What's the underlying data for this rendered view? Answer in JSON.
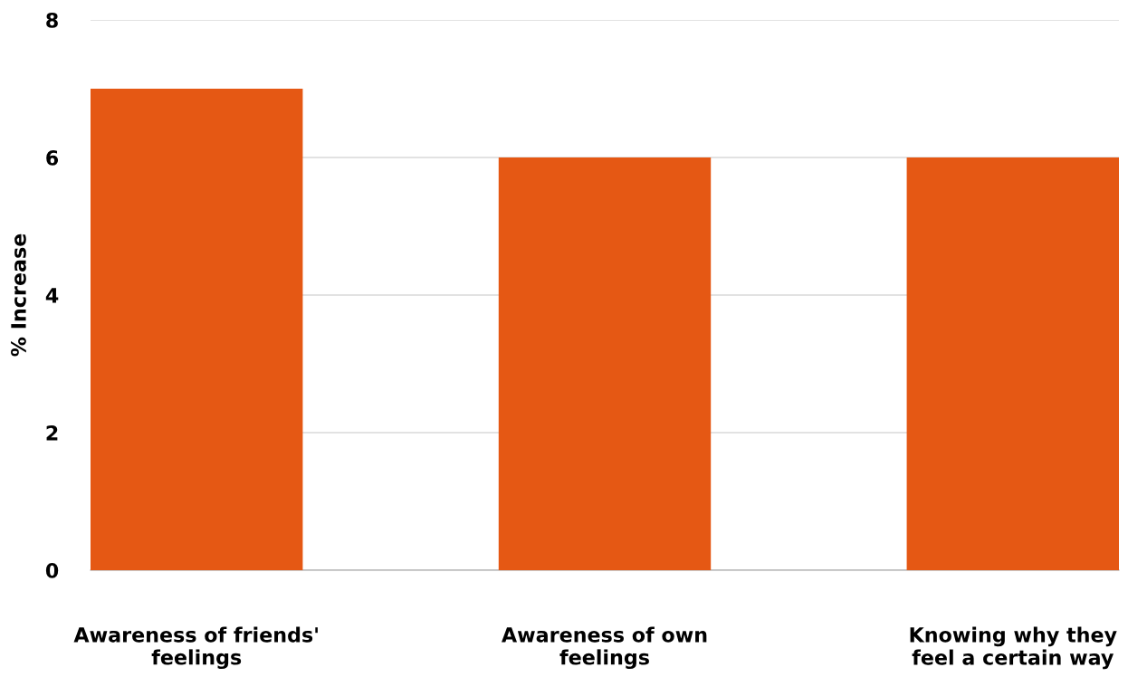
{
  "chart_data": {
    "type": "bar",
    "ylabel": "% Increase",
    "categories": [
      "Awareness of friends'\nfeelings",
      "Awareness of own\nfeelings",
      "Knowing why they\nfeel a certain way"
    ],
    "values": [
      7,
      6,
      6
    ],
    "color": "#e55814",
    "ylim": [
      0,
      8
    ],
    "yticks": [
      0,
      2,
      4,
      6,
      8
    ],
    "grid": "y"
  }
}
